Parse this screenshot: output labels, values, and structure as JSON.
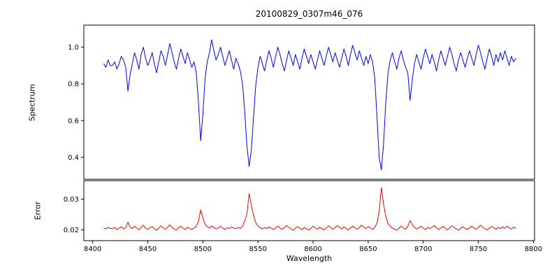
{
  "figure": {
    "title": "20100829_0307m46_076",
    "background": "#ffffff"
  },
  "x_axis": {
    "label": "Wavelength",
    "xlim": [
      8392,
      8801
    ],
    "ticks": [
      8400,
      8450,
      8500,
      8550,
      8600,
      8650,
      8700,
      8750,
      8800
    ],
    "tick_labels": [
      "8400",
      "8450",
      "8500",
      "8550",
      "8600",
      "8650",
      "8700",
      "8750",
      "8800"
    ]
  },
  "chart_data": [
    {
      "type": "line",
      "name": "spectrum",
      "ylabel": "Spectrum",
      "color": "#0000ff",
      "x_start": 8410,
      "x_step": 2,
      "ylim": [
        0.28,
        1.12
      ],
      "yticks": [
        0.4,
        0.6,
        0.8,
        1.0
      ],
      "ytick_labels": [
        "0.4",
        "0.6",
        "0.8",
        "1.0"
      ],
      "absorption_lines": [
        {
          "center": 8498,
          "min": 0.49
        },
        {
          "center": 8542,
          "min": 0.35
        },
        {
          "center": 8662,
          "min": 0.33
        },
        {
          "center": 8688,
          "min": 0.71
        }
      ],
      "values": [
        0.91,
        0.89,
        0.93,
        0.9,
        0.9,
        0.92,
        0.88,
        0.91,
        0.95,
        0.93,
        0.89,
        0.76,
        0.85,
        0.91,
        0.97,
        0.93,
        0.88,
        0.96,
        1.0,
        0.94,
        0.9,
        0.93,
        0.97,
        0.91,
        0.86,
        0.92,
        0.98,
        0.95,
        0.9,
        0.96,
        1.02,
        0.97,
        0.92,
        0.88,
        0.94,
        0.99,
        0.95,
        0.91,
        0.97,
        0.93,
        0.89,
        0.92,
        0.86,
        0.7,
        0.49,
        0.63,
        0.83,
        0.92,
        0.97,
        1.04,
        0.98,
        0.93,
        0.96,
        1.0,
        0.95,
        0.9,
        0.94,
        0.98,
        0.93,
        0.88,
        0.94,
        0.91,
        0.87,
        0.8,
        0.65,
        0.46,
        0.35,
        0.44,
        0.62,
        0.79,
        0.89,
        0.95,
        0.91,
        0.87,
        0.93,
        0.98,
        0.94,
        0.89,
        0.95,
        1.0,
        0.96,
        0.91,
        0.87,
        0.93,
        0.98,
        0.94,
        0.9,
        0.96,
        0.92,
        0.88,
        0.94,
        0.99,
        0.95,
        0.91,
        0.96,
        0.92,
        0.88,
        0.93,
        0.98,
        0.94,
        0.9,
        0.95,
        1.0,
        0.96,
        0.92,
        0.97,
        0.93,
        0.89,
        0.94,
        0.99,
        0.95,
        0.9,
        0.96,
        1.01,
        0.97,
        0.93,
        0.98,
        0.94,
        0.9,
        0.95,
        0.91,
        0.96,
        0.92,
        0.83,
        0.62,
        0.4,
        0.33,
        0.47,
        0.7,
        0.86,
        0.93,
        0.97,
        0.92,
        0.88,
        0.94,
        0.98,
        0.93,
        0.89,
        0.86,
        0.71,
        0.82,
        0.91,
        0.96,
        0.92,
        0.88,
        0.94,
        0.99,
        0.95,
        0.91,
        0.96,
        0.92,
        0.87,
        0.93,
        0.98,
        0.94,
        0.9,
        0.95,
        1.0,
        0.96,
        0.91,
        0.87,
        0.93,
        0.97,
        0.93,
        0.89,
        0.94,
        0.98,
        0.94,
        0.9,
        0.96,
        1.01,
        0.97,
        0.92,
        0.88,
        0.94,
        0.99,
        0.95,
        0.9,
        0.96,
        0.92,
        0.97,
        0.93,
        0.98,
        0.94,
        0.9,
        0.95,
        0.92,
        0.94
      ]
    },
    {
      "type": "line",
      "name": "error",
      "ylabel": "Error",
      "color": "#ff0000",
      "x_start": 8410,
      "x_step": 2,
      "ylim": [
        0.0165,
        0.036
      ],
      "yticks": [
        0.02,
        0.03
      ],
      "ytick_labels": [
        "0.02",
        "0.03"
      ],
      "peaks": [
        {
          "center": 8498,
          "max": 0.0265
        },
        {
          "center": 8542,
          "max": 0.0318
        },
        {
          "center": 8662,
          "max": 0.0338
        },
        {
          "center": 8688,
          "max": 0.023
        }
      ],
      "values": [
        0.0206,
        0.0203,
        0.0208,
        0.0205,
        0.0204,
        0.0208,
        0.0201,
        0.0206,
        0.021,
        0.0203,
        0.0207,
        0.0225,
        0.0209,
        0.0204,
        0.0212,
        0.0206,
        0.02,
        0.0208,
        0.0215,
        0.0205,
        0.0202,
        0.0207,
        0.0211,
        0.0204,
        0.0199,
        0.0206,
        0.0213,
        0.0207,
        0.0202,
        0.0209,
        0.0216,
        0.0208,
        0.0203,
        0.0199,
        0.0207,
        0.0212,
        0.0206,
        0.0201,
        0.0209,
        0.0204,
        0.0202,
        0.0206,
        0.0212,
        0.0228,
        0.0265,
        0.024,
        0.0218,
        0.021,
        0.0206,
        0.0213,
        0.0208,
        0.0203,
        0.0207,
        0.0212,
        0.0206,
        0.0201,
        0.0207,
        0.0204,
        0.021,
        0.0206,
        0.0204,
        0.0208,
        0.0205,
        0.0212,
        0.0228,
        0.0252,
        0.0318,
        0.028,
        0.0246,
        0.0224,
        0.0212,
        0.0207,
        0.0203,
        0.0208,
        0.0204,
        0.021,
        0.0206,
        0.0201,
        0.0207,
        0.0212,
        0.0206,
        0.0202,
        0.0208,
        0.0214,
        0.0208,
        0.0203,
        0.0199,
        0.0206,
        0.0211,
        0.0205,
        0.0201,
        0.0208,
        0.0204,
        0.0199,
        0.0205,
        0.0212,
        0.0207,
        0.0202,
        0.0209,
        0.0204,
        0.02,
        0.0206,
        0.0213,
        0.0208,
        0.0202,
        0.0207,
        0.0214,
        0.0209,
        0.0203,
        0.021,
        0.0205,
        0.02,
        0.0206,
        0.0212,
        0.0207,
        0.0202,
        0.0208,
        0.0215,
        0.0209,
        0.0204,
        0.0211,
        0.0206,
        0.0201,
        0.0209,
        0.0222,
        0.0258,
        0.0338,
        0.0284,
        0.0244,
        0.022,
        0.0212,
        0.0206,
        0.0202,
        0.0199,
        0.0206,
        0.0212,
        0.0207,
        0.0202,
        0.0212,
        0.023,
        0.0218,
        0.0208,
        0.0203,
        0.0207,
        0.0212,
        0.0206,
        0.0201,
        0.0208,
        0.0204,
        0.0209,
        0.0214,
        0.0207,
        0.0202,
        0.0206,
        0.0211,
        0.0205,
        0.02,
        0.0207,
        0.0213,
        0.0208,
        0.0203,
        0.0199,
        0.0206,
        0.021,
        0.0205,
        0.0201,
        0.0207,
        0.0212,
        0.0206,
        0.0202,
        0.0208,
        0.0215,
        0.0209,
        0.0204,
        0.02,
        0.0206,
        0.0211,
        0.0207,
        0.0202,
        0.0208,
        0.0204,
        0.021,
        0.0205,
        0.0212,
        0.0207,
        0.0203,
        0.0209,
        0.0205
      ]
    }
  ]
}
